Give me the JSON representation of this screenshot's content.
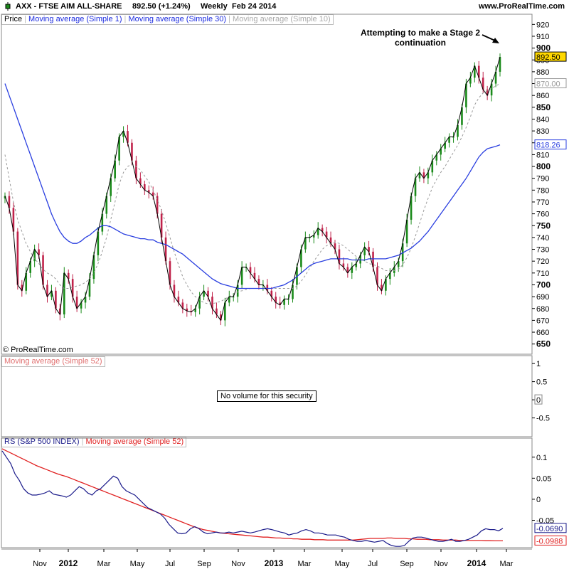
{
  "header": {
    "symbol": "AXX - FTSE AIM ALL-SHARE",
    "quote": "892.50 (+1.24%)",
    "period": "Weekly",
    "date": "Feb 24 2014",
    "site": "www.ProRealTime.com"
  },
  "copyright": "© ProRealTime.com",
  "annotation": {
    "line1": "Attempting to make a Stage 2",
    "line2": "continuation"
  },
  "panels": {
    "price": {
      "legend": [
        "Price",
        "Moving average (Simple 1)",
        "Moving average (Simple 30)",
        "Moving average (Simple 10)"
      ]
    },
    "volume": {
      "legend": "Moving average (Simple 52)",
      "message": "No volume for this security"
    },
    "rs": {
      "legend": [
        "RS (S&P 500 INDEX)",
        "Moving average (Simple 52)"
      ]
    }
  },
  "colors": {
    "up": "#1a8a1a",
    "down": "#c0224a",
    "ma1": "#000000",
    "ma30": "#2a3fe0",
    "ma10": "#999999",
    "rs": "#1a1a8a",
    "rsma": "#e02020",
    "text_blue": "#1a2adf"
  },
  "chart_data": [
    {
      "type": "candlestick",
      "title": "AXX - FTSE AIM ALL-SHARE",
      "x_ticks": [
        "Nov",
        "2012",
        "Mar",
        "May",
        "Jul",
        "Sep",
        "Nov",
        "2013",
        "Mar",
        "May",
        "Jul",
        "Sep",
        "Nov",
        "2014",
        "Mar"
      ],
      "y_ticks": [
        650,
        660,
        670,
        680,
        690,
        700,
        710,
        720,
        730,
        740,
        750,
        760,
        770,
        780,
        790,
        800,
        810,
        820,
        830,
        840,
        850,
        860,
        870,
        880,
        890,
        900,
        910,
        920
      ],
      "ylim": [
        645,
        925
      ],
      "price_labels": {
        "ma1": "892.50",
        "ma10": "870.00",
        "ma30": "818.26"
      },
      "close": [
        775,
        765,
        745,
        700,
        695,
        710,
        720,
        730,
        725,
        700,
        690,
        695,
        680,
        675,
        710,
        705,
        690,
        680,
        685,
        690,
        705,
        725,
        745,
        760,
        775,
        790,
        805,
        825,
        830,
        820,
        805,
        790,
        785,
        780,
        778,
        775,
        760,
        740,
        720,
        700,
        690,
        685,
        680,
        678,
        677,
        680,
        690,
        695,
        690,
        680,
        675,
        670,
        685,
        690,
        690,
        700,
        715,
        715,
        710,
        705,
        700,
        700,
        695,
        690,
        685,
        683,
        688,
        688,
        700,
        715,
        730,
        740,
        740,
        742,
        748,
        745,
        740,
        735,
        730,
        718,
        715,
        710,
        715,
        718,
        725,
        732,
        728,
        715,
        700,
        695,
        705,
        710,
        715,
        720,
        735,
        755,
        775,
        790,
        795,
        790,
        795,
        805,
        810,
        815,
        820,
        825,
        825,
        835,
        850,
        870,
        875,
        885,
        875,
        865,
        860,
        870,
        880,
        892.5
      ],
      "ma30": [
        870,
        860,
        850,
        840,
        830,
        820,
        810,
        800,
        790,
        780,
        770,
        760,
        752,
        745,
        740,
        737,
        735,
        735,
        737,
        740,
        742,
        745,
        748,
        750,
        750,
        749,
        747,
        745,
        743,
        742,
        741,
        740,
        739,
        739,
        738,
        738,
        736,
        735,
        734,
        732,
        730,
        728,
        726,
        723,
        720,
        717,
        714,
        711,
        708,
        705,
        703,
        701,
        700,
        699,
        698,
        697,
        697,
        697,
        697,
        697,
        697,
        697,
        697,
        697,
        698,
        699,
        700,
        702,
        704,
        707,
        710,
        713,
        716,
        718,
        719,
        720,
        721,
        722,
        722,
        722,
        722,
        722,
        721,
        721,
        721,
        721,
        722,
        722,
        722,
        722,
        722,
        723,
        724,
        725,
        727,
        729,
        731,
        734,
        737,
        741,
        745,
        750,
        755,
        760,
        765,
        770,
        775,
        780,
        785,
        790,
        796,
        802,
        808,
        812,
        815,
        816,
        817,
        818.26
      ],
      "ma10": [
        810,
        790,
        770,
        755,
        745,
        735,
        728,
        722,
        718,
        713,
        710,
        708,
        705,
        700,
        697,
        697,
        698,
        699,
        700,
        702,
        705,
        710,
        718,
        728,
        740,
        755,
        770,
        785,
        795,
        800,
        802,
        800,
        797,
        792,
        787,
        780,
        772,
        763,
        752,
        740,
        728,
        717,
        707,
        700,
        694,
        690,
        687,
        685,
        684,
        684,
        685,
        686,
        688,
        690,
        692,
        694,
        695,
        696,
        697,
        697,
        697,
        697,
        697,
        697,
        697,
        697,
        697,
        697,
        697,
        699,
        703,
        708,
        714,
        720,
        725,
        730,
        733,
        735,
        736,
        735,
        733,
        730,
        727,
        724,
        722,
        720,
        718,
        717,
        716,
        714,
        712,
        712,
        712,
        713,
        717,
        723,
        731,
        741,
        752,
        763,
        773,
        782,
        789,
        795,
        800,
        806,
        812,
        818,
        825,
        833,
        842,
        852,
        858,
        862,
        864,
        866,
        868,
        870
      ]
    },
    {
      "type": "line",
      "title": "RS (S&P 500 INDEX)",
      "y_ticks": [
        0.1,
        0.05,
        0,
        -0.05
      ],
      "ylim": [
        -0.115,
        0.13
      ],
      "value_labels": {
        "rs": "-0.0690",
        "ma52": "-0.0988"
      },
      "series": [
        {
          "name": "RS (S&P 500 INDEX)",
          "values": [
            0.115,
            0.1,
            0.085,
            0.06,
            0.045,
            0.025,
            0.015,
            0.01,
            0.01,
            0.012,
            0.015,
            0.02,
            0.012,
            0.01,
            0.008,
            0.005,
            0.01,
            0.02,
            0.03,
            0.025,
            0.015,
            0.01,
            0.02,
            0.025,
            0.035,
            0.045,
            0.055,
            0.05,
            0.03,
            0.02,
            0.015,
            0.01,
            0.0,
            -0.01,
            -0.02,
            -0.025,
            -0.03,
            -0.035,
            -0.045,
            -0.06,
            -0.07,
            -0.08,
            -0.082,
            -0.08,
            -0.07,
            -0.065,
            -0.07,
            -0.078,
            -0.082,
            -0.08,
            -0.078,
            -0.08,
            -0.08,
            -0.078,
            -0.08,
            -0.078,
            -0.076,
            -0.078,
            -0.08,
            -0.078,
            -0.075,
            -0.072,
            -0.07,
            -0.072,
            -0.075,
            -0.078,
            -0.08,
            -0.085,
            -0.082,
            -0.08,
            -0.075,
            -0.072,
            -0.075,
            -0.08,
            -0.08,
            -0.082,
            -0.085,
            -0.085,
            -0.085,
            -0.088,
            -0.09,
            -0.095,
            -0.098,
            -0.1,
            -0.1,
            -0.098,
            -0.1,
            -0.102,
            -0.1,
            -0.098,
            -0.105,
            -0.11,
            -0.112,
            -0.112,
            -0.11,
            -0.1,
            -0.092,
            -0.09,
            -0.09,
            -0.092,
            -0.095,
            -0.098,
            -0.1,
            -0.1,
            -0.098,
            -0.095,
            -0.1,
            -0.1,
            -0.098,
            -0.095,
            -0.09,
            -0.085,
            -0.075,
            -0.07,
            -0.072,
            -0.072,
            -0.075,
            -0.069
          ]
        },
        {
          "name": "Moving average (Simple 52)",
          "values": [
            0.12,
            0.115,
            0.11,
            0.105,
            0.1,
            0.095,
            0.09,
            0.085,
            0.08,
            0.076,
            0.072,
            0.068,
            0.064,
            0.06,
            0.057,
            0.054,
            0.05,
            0.046,
            0.042,
            0.038,
            0.034,
            0.03,
            0.026,
            0.022,
            0.018,
            0.014,
            0.01,
            0.006,
            0.002,
            -0.002,
            -0.006,
            -0.01,
            -0.014,
            -0.018,
            -0.022,
            -0.026,
            -0.03,
            -0.034,
            -0.038,
            -0.042,
            -0.046,
            -0.05,
            -0.054,
            -0.058,
            -0.062,
            -0.066,
            -0.069,
            -0.072,
            -0.074,
            -0.076,
            -0.078,
            -0.08,
            -0.081,
            -0.082,
            -0.083,
            -0.084,
            -0.085,
            -0.086,
            -0.087,
            -0.088,
            -0.089,
            -0.09,
            -0.09,
            -0.091,
            -0.092,
            -0.092,
            -0.093,
            -0.093,
            -0.094,
            -0.094,
            -0.095,
            -0.095,
            -0.095,
            -0.096,
            -0.096,
            -0.096,
            -0.097,
            -0.097,
            -0.097,
            -0.097,
            -0.097,
            -0.097,
            -0.097,
            -0.096,
            -0.095,
            -0.094,
            -0.093,
            -0.093,
            -0.093,
            -0.093,
            -0.092,
            -0.092,
            -0.093,
            -0.093,
            -0.093,
            -0.094,
            -0.094,
            -0.095,
            -0.095,
            -0.095,
            -0.096,
            -0.096,
            -0.096,
            -0.097,
            -0.097,
            -0.097,
            -0.097,
            -0.098,
            -0.098,
            -0.098,
            -0.098,
            -0.098,
            -0.098,
            -0.0985,
            -0.0985,
            -0.0988,
            -0.0988,
            -0.0988
          ]
        }
      ]
    },
    {
      "type": "line",
      "title": "Moving average (Simple 52)",
      "y_ticks": [
        1,
        0.5,
        0,
        -0.5
      ],
      "ylim": [
        -0.9,
        1.1
      ],
      "value_labels": {
        "zero": "0"
      }
    }
  ]
}
